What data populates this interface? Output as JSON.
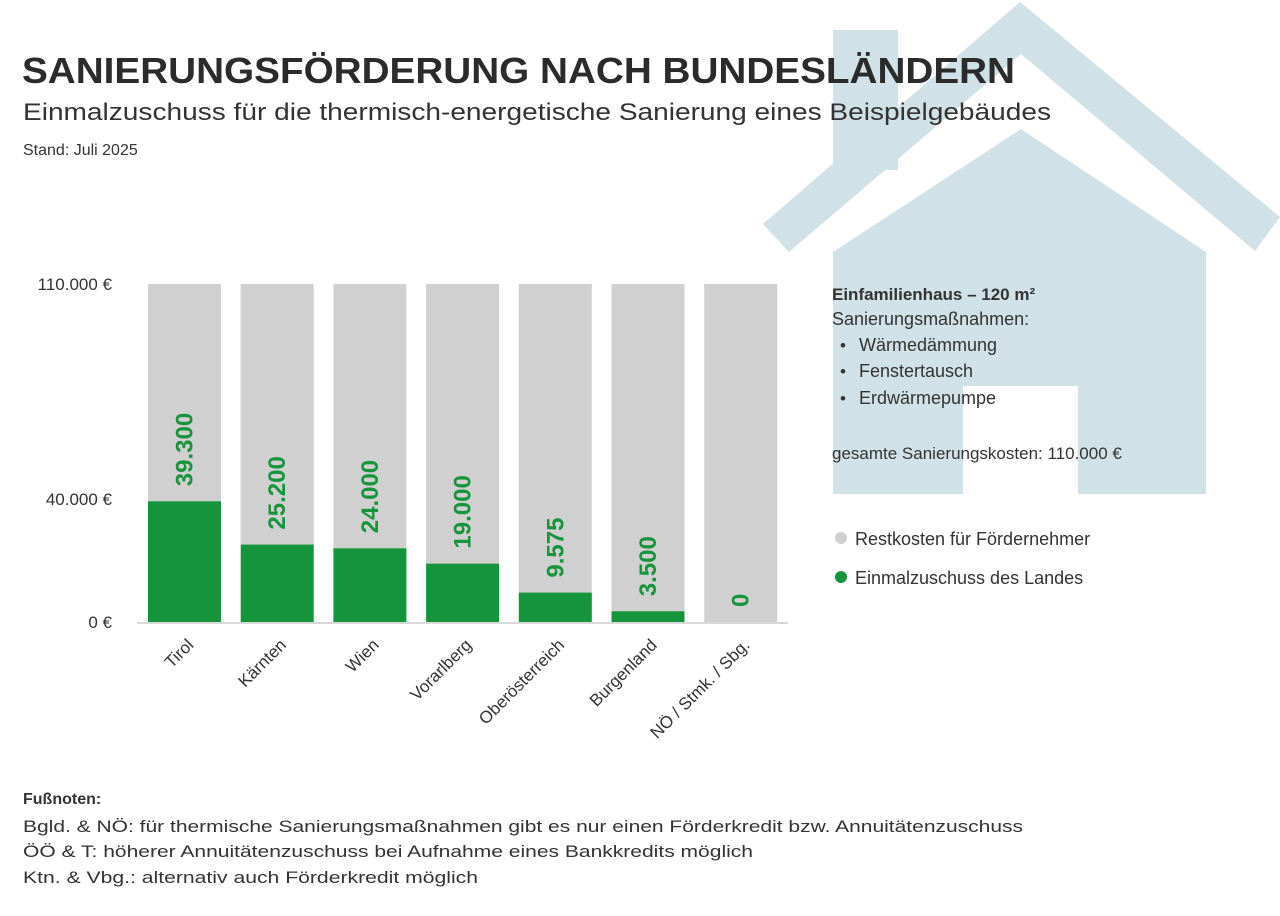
{
  "header": {
    "title": "SANIERUNGSFÖRDERUNG NACH BUNDESLÄNDERN",
    "subtitle": "Einmalzuschuss für die thermisch-energetische Sanierung eines Beispielgebäudes",
    "date_note": "Stand: Juli 2025"
  },
  "info": {
    "heading": "Einfamilienhaus – 120 m²",
    "measures_label": "Sanierungsmaßnahmen:",
    "measures": [
      "Wärmedämmung",
      "Fenstertausch",
      "Erdwärmepumpe"
    ],
    "total": "gesamte Sanierungskosten: 110.000 €"
  },
  "footnotes": {
    "heading": "Fußnoten:",
    "lines": [
      "Bgld. & NÖ: für thermische Sanierungsmaßnahmen gibt es nur einen Förderkredit bzw. Annuitätenzuschuss",
      "ÖÖ & T: höherer Annuitätenzuschuss bei Aufnahme eines Bankkredits möglich",
      "Ktn. & Vbg.: alternativ auch Förderkredit möglich"
    ]
  },
  "colors": {
    "subsidy": "#16943c",
    "rest": "#d0d0d0",
    "house": "#d0e1e7",
    "text": "#333333"
  },
  "chart_data": {
    "type": "bar",
    "stacked": true,
    "categories": [
      "Tirol",
      "Kärnten",
      "Wien",
      "Vorarlberg",
      "Oberösterreich",
      "Burgenland",
      "NÖ / Stmk. / Sbg."
    ],
    "series": [
      {
        "name": "Einmalzuschuss des Landes",
        "values": [
          39300,
          25200,
          24000,
          19000,
          9575,
          3500,
          0
        ]
      },
      {
        "name": "Restkosten für Fördernehmer",
        "values": [
          70700,
          84800,
          86000,
          91000,
          100425,
          106500,
          110000
        ]
      }
    ],
    "data_labels": [
      "39.300",
      "25.200",
      "24.000",
      "19.000",
      "9.575",
      "3.500",
      "0"
    ],
    "ytick_values": [
      0,
      40000,
      110000
    ],
    "ytick_labels": [
      "0 €",
      "40.000 €",
      "110.000 €"
    ],
    "ylim": [
      0,
      110000
    ],
    "grid": false,
    "legend_position": "right",
    "xlabel": "",
    "ylabel": ""
  }
}
